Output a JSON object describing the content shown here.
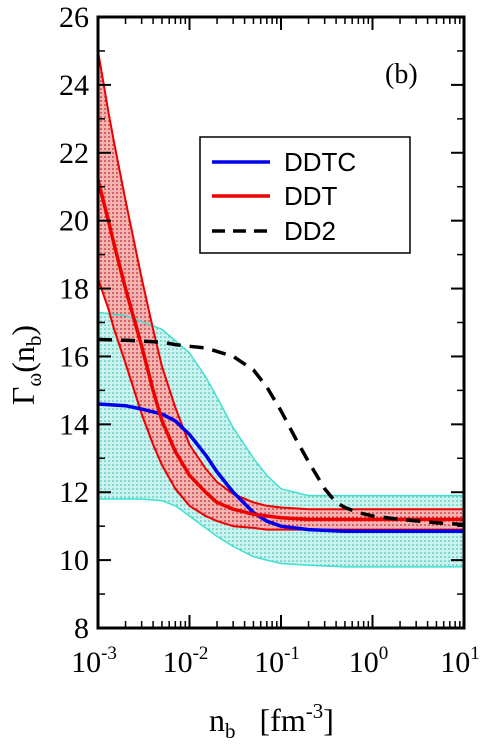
{
  "chart_data": {
    "type": "line",
    "panel_label": "(b)",
    "xlabel": {
      "main": "n",
      "sub": "b",
      "unit_open": "   [fm",
      "unit_exp": "-3",
      "unit_close": "]"
    },
    "ylabel": {
      "main": "Γ",
      "sub1": "ω",
      "open": "(n",
      "sub2": "b",
      "close": ")"
    },
    "x_scale": "log",
    "xlim": [
      0.001,
      10
    ],
    "ylim": [
      8,
      26
    ],
    "x_ticks": [
      {
        "base": "10",
        "exp": "-3",
        "value": 0.001
      },
      {
        "base": "10",
        "exp": "-2",
        "value": 0.01
      },
      {
        "base": "10",
        "exp": "-1",
        "value": 0.1
      },
      {
        "base": "10",
        "exp": "0",
        "value": 1
      },
      {
        "base": "10",
        "exp": "1",
        "value": 10
      }
    ],
    "y_ticks": [
      "8",
      "10",
      "12",
      "14",
      "16",
      "18",
      "20",
      "22",
      "24",
      "26"
    ],
    "legend": {
      "position": "upper-right",
      "entries": [
        {
          "name": "DDTC",
          "color": "#0000ee",
          "dash": "solid"
        },
        {
          "name": "DDT",
          "color": "#ee0000",
          "dash": "solid"
        },
        {
          "name": "DD2",
          "color": "#000000",
          "dash": "dashed"
        }
      ]
    },
    "series": [
      {
        "name": "DDTC",
        "color": "#0000ee",
        "x": [
          0.001,
          0.002,
          0.003,
          0.005,
          0.007,
          0.01,
          0.015,
          0.02,
          0.03,
          0.05,
          0.07,
          0.1,
          0.2,
          0.5,
          1,
          10
        ],
        "y": [
          14.6,
          14.55,
          14.45,
          14.3,
          14.1,
          13.7,
          13.1,
          12.6,
          12.0,
          11.4,
          11.15,
          11.0,
          10.9,
          10.85,
          10.85,
          10.85
        ]
      },
      {
        "name": "DDTC upper",
        "color": "#40e0d0",
        "x": [
          0.001,
          0.002,
          0.005,
          0.01,
          0.015,
          0.02,
          0.03,
          0.05,
          0.07,
          0.1,
          0.2,
          0.5,
          1,
          10
        ],
        "y": [
          17.3,
          17.2,
          16.8,
          16.1,
          15.4,
          14.8,
          13.9,
          13.0,
          12.5,
          12.1,
          11.9,
          11.9,
          11.9,
          11.9
        ]
      },
      {
        "name": "DDTC lower",
        "color": "#40e0d0",
        "x": [
          0.001,
          0.003,
          0.005,
          0.007,
          0.01,
          0.02,
          0.03,
          0.05,
          0.07,
          0.1,
          0.2,
          0.5,
          1,
          10
        ],
        "y": [
          11.8,
          11.8,
          11.75,
          11.6,
          11.3,
          10.7,
          10.4,
          10.1,
          10.0,
          9.9,
          9.85,
          9.8,
          9.8,
          9.8
        ]
      },
      {
        "name": "DDT",
        "color": "#ee0000",
        "x": [
          0.001,
          0.0013,
          0.0015,
          0.002,
          0.003,
          0.004,
          0.005,
          0.007,
          0.01,
          0.015,
          0.02,
          0.03,
          0.05,
          0.07,
          0.1,
          0.2,
          0.5,
          1,
          10
        ],
        "y": [
          21.2,
          20.0,
          19.3,
          18.0,
          16.3,
          15.0,
          14.1,
          13.2,
          12.5,
          12.0,
          11.7,
          11.5,
          11.35,
          11.3,
          11.25,
          11.2,
          11.2,
          11.2,
          11.2
        ]
      },
      {
        "name": "DDT upper",
        "color": "#ee0000",
        "x": [
          0.001,
          0.0013,
          0.0015,
          0.002,
          0.003,
          0.004,
          0.005,
          0.007,
          0.01,
          0.015,
          0.02,
          0.03,
          0.05,
          0.07,
          0.1,
          0.2,
          0.5,
          1,
          10
        ],
        "y": [
          25.0,
          23.2,
          22.3,
          20.6,
          18.3,
          16.8,
          15.7,
          14.5,
          13.4,
          12.7,
          12.3,
          11.95,
          11.7,
          11.6,
          11.55,
          11.5,
          11.5,
          11.5,
          11.5
        ]
      },
      {
        "name": "DDT lower",
        "color": "#ee0000",
        "x": [
          0.001,
          0.0013,
          0.0015,
          0.002,
          0.003,
          0.004,
          0.005,
          0.007,
          0.01,
          0.015,
          0.02,
          0.03,
          0.05,
          0.07,
          0.1,
          0.2,
          0.5,
          1,
          10
        ],
        "y": [
          18.3,
          17.4,
          16.8,
          15.8,
          14.3,
          13.4,
          12.8,
          12.1,
          11.6,
          11.3,
          11.15,
          11.0,
          10.95,
          10.9,
          10.9,
          10.9,
          10.9,
          10.9,
          10.9
        ]
      },
      {
        "name": "DD2",
        "color": "#000000",
        "dash": "dashed",
        "x": [
          0.001,
          0.002,
          0.005,
          0.007,
          0.01,
          0.015,
          0.02,
          0.03,
          0.05,
          0.07,
          0.1,
          0.15,
          0.2,
          0.3,
          0.4,
          0.5,
          0.7,
          1,
          2,
          5,
          10
        ],
        "y": [
          16.5,
          16.48,
          16.42,
          16.35,
          16.3,
          16.25,
          16.15,
          16.0,
          15.6,
          15.1,
          14.4,
          13.5,
          12.9,
          12.1,
          11.7,
          11.55,
          11.4,
          11.3,
          11.2,
          11.1,
          11.05
        ]
      }
    ]
  }
}
